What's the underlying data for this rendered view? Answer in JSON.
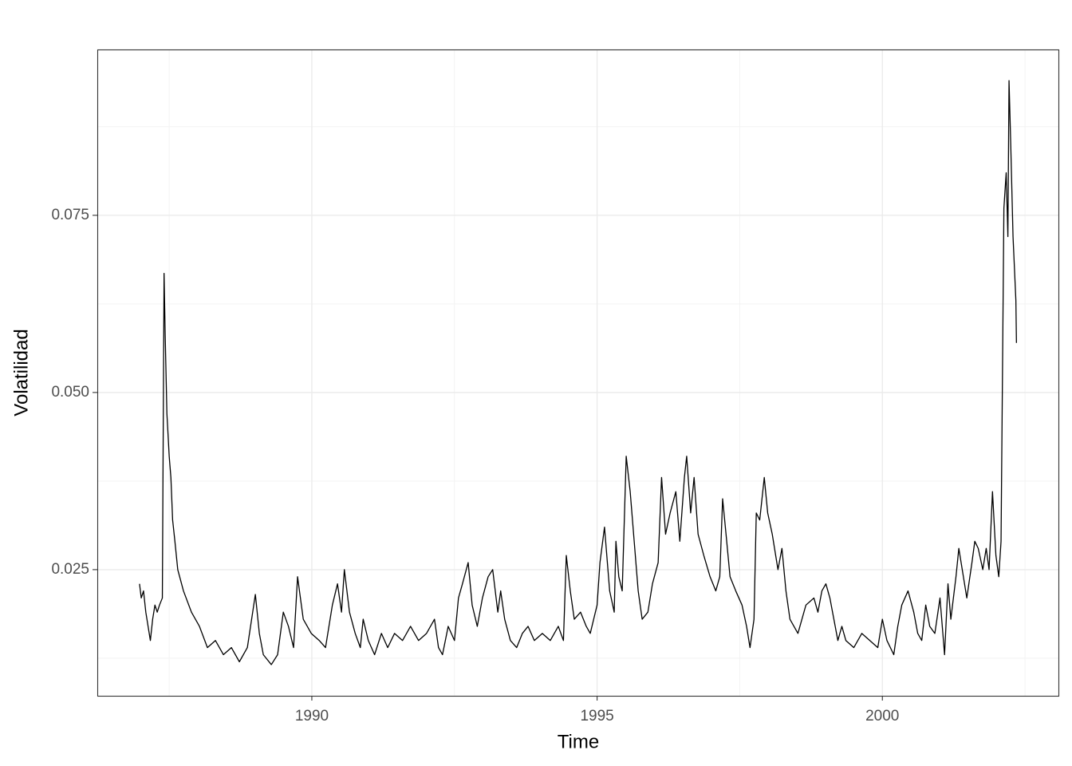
{
  "chart_data": {
    "type": "line",
    "x_label": "Time",
    "y_label": "Volatilidad",
    "color": "#000000",
    "grid": true,
    "xlim": [
      1986.24,
      2003.1
    ],
    "ylim": [
      0.0072,
      0.0984
    ],
    "xticks": [
      1990,
      1995,
      2000
    ],
    "yticks": [
      0.025,
      {
        "value": 0.05,
        "label": "0.050"
      },
      0.075
    ],
    "minor_xticks": [
      1987.5,
      1992.5,
      1997.5,
      2002.5
    ],
    "minor_yticks": [
      0.0125,
      0.0375,
      0.0625,
      0.0875
    ],
    "x": [
      1986.98,
      1987.01,
      1987.05,
      1987.09,
      1987.13,
      1987.17,
      1987.21,
      1987.25,
      1987.29,
      1987.33,
      1987.38,
      1987.41,
      1987.43,
      1987.46,
      1987.5,
      1987.53,
      1987.56,
      1987.6,
      1987.65,
      1987.75,
      1987.89,
      1988.03,
      1988.17,
      1988.31,
      1988.45,
      1988.59,
      1988.73,
      1988.87,
      1989.01,
      1989.08,
      1989.15,
      1989.29,
      1989.4,
      1989.5,
      1989.59,
      1989.68,
      1989.75,
      1989.85,
      1989.99,
      1990.13,
      1990.24,
      1990.36,
      1990.45,
      1990.52,
      1990.57,
      1990.66,
      1990.76,
      1990.85,
      1990.9,
      1990.99,
      1991.1,
      1991.22,
      1991.33,
      1991.45,
      1991.59,
      1991.73,
      1991.87,
      1992.01,
      1992.15,
      1992.22,
      1992.29,
      1992.39,
      1992.5,
      1992.57,
      1992.64,
      1992.74,
      1992.81,
      1992.9,
      1992.99,
      1993.09,
      1993.17,
      1993.26,
      1993.31,
      1993.38,
      1993.48,
      1993.59,
      1993.69,
      1993.79,
      1993.9,
      1994.04,
      1994.18,
      1994.32,
      1994.41,
      1994.46,
      1994.53,
      1994.6,
      1994.71,
      1994.81,
      1994.88,
      1995.0,
      1995.05,
      1995.13,
      1995.22,
      1995.3,
      1995.33,
      1995.38,
      1995.44,
      1995.51,
      1995.58,
      1995.65,
      1995.72,
      1995.79,
      1995.89,
      1995.97,
      1996.07,
      1996.13,
      1996.2,
      1996.28,
      1996.38,
      1996.45,
      1996.53,
      1996.57,
      1996.64,
      1996.7,
      1996.77,
      1996.87,
      1996.98,
      1997.08,
      1997.15,
      1997.2,
      1997.26,
      1997.33,
      1997.43,
      1997.54,
      1997.62,
      1997.68,
      1997.75,
      1997.79,
      1997.85,
      1997.93,
      1997.99,
      1998.07,
      1998.17,
      1998.24,
      1998.31,
      1998.38,
      1998.45,
      1998.52,
      1998.59,
      1998.66,
      1998.8,
      1998.87,
      1998.94,
      1999.01,
      1999.08,
      1999.15,
      1999.22,
      1999.29,
      1999.36,
      1999.5,
      1999.64,
      1999.78,
      1999.92,
      2000.0,
      2000.08,
      2000.2,
      2000.27,
      2000.34,
      2000.45,
      2000.55,
      2000.62,
      2000.69,
      2000.76,
      2000.83,
      2000.92,
      2001.01,
      2001.09,
      2001.15,
      2001.2,
      2001.29,
      2001.34,
      2001.4,
      2001.48,
      2001.57,
      2001.62,
      2001.68,
      2001.76,
      2001.82,
      2001.87,
      2001.93,
      2001.99,
      2002.04,
      2002.08,
      2002.13,
      2002.17,
      2002.2,
      2002.22,
      2002.25,
      2002.29,
      2002.34,
      2002.35
    ],
    "values": [
      0.023,
      0.021,
      0.022,
      0.019,
      0.017,
      0.015,
      0.018,
      0.02,
      0.019,
      0.02,
      0.021,
      0.0668,
      0.058,
      0.047,
      0.041,
      0.038,
      0.032,
      0.029,
      0.025,
      0.022,
      0.019,
      0.017,
      0.014,
      0.015,
      0.013,
      0.014,
      0.012,
      0.014,
      0.0215,
      0.016,
      0.013,
      0.0116,
      0.013,
      0.019,
      0.017,
      0.014,
      0.024,
      0.018,
      0.016,
      0.015,
      0.014,
      0.02,
      0.023,
      0.019,
      0.025,
      0.019,
      0.016,
      0.014,
      0.018,
      0.015,
      0.013,
      0.016,
      0.014,
      0.016,
      0.015,
      0.017,
      0.015,
      0.016,
      0.018,
      0.014,
      0.013,
      0.017,
      0.015,
      0.021,
      0.023,
      0.026,
      0.02,
      0.017,
      0.021,
      0.024,
      0.025,
      0.019,
      0.022,
      0.018,
      0.015,
      0.014,
      0.016,
      0.017,
      0.015,
      0.016,
      0.015,
      0.017,
      0.015,
      0.027,
      0.022,
      0.018,
      0.019,
      0.017,
      0.016,
      0.02,
      0.026,
      0.031,
      0.022,
      0.019,
      0.029,
      0.024,
      0.022,
      0.041,
      0.036,
      0.029,
      0.022,
      0.018,
      0.019,
      0.023,
      0.026,
      0.038,
      0.03,
      0.033,
      0.036,
      0.029,
      0.038,
      0.041,
      0.033,
      0.038,
      0.03,
      0.027,
      0.024,
      0.022,
      0.024,
      0.035,
      0.03,
      0.024,
      0.022,
      0.02,
      0.017,
      0.014,
      0.018,
      0.033,
      0.032,
      0.038,
      0.033,
      0.03,
      0.025,
      0.028,
      0.022,
      0.018,
      0.017,
      0.016,
      0.018,
      0.02,
      0.021,
      0.019,
      0.022,
      0.023,
      0.021,
      0.018,
      0.015,
      0.017,
      0.015,
      0.014,
      0.016,
      0.015,
      0.014,
      0.018,
      0.015,
      0.013,
      0.017,
      0.02,
      0.022,
      0.019,
      0.016,
      0.015,
      0.02,
      0.017,
      0.016,
      0.021,
      0.013,
      0.023,
      0.018,
      0.024,
      0.028,
      0.025,
      0.021,
      0.026,
      0.029,
      0.028,
      0.025,
      0.028,
      0.025,
      0.036,
      0.027,
      0.024,
      0.029,
      0.076,
      0.081,
      0.072,
      0.094,
      0.085,
      0.072,
      0.063,
      0.057
    ]
  }
}
